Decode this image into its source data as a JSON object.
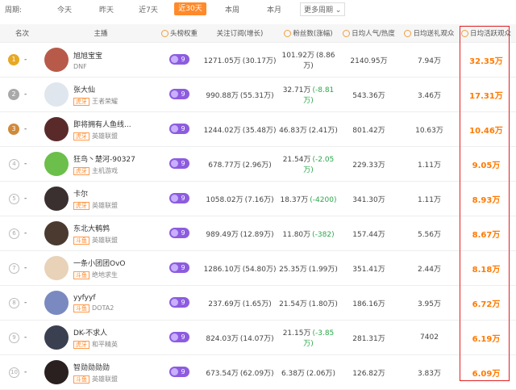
{
  "filter": {
    "label": "周期:",
    "tabs": [
      "今天",
      "昨天",
      "近7天",
      "近30天",
      "本周",
      "本月"
    ],
    "active": 3,
    "more": "更多周期"
  },
  "headers": [
    "名次",
    "主播",
    "头榜权重",
    "关注订阅(增长)",
    "粉丝数(涨幅)",
    "日均人气/热度",
    "日均送礼观众",
    "日均活跃观众"
  ],
  "rows": [
    {
      "rank": 1,
      "change": "-",
      "name": "旭旭宝宝",
      "game": "DNF",
      "weight": 9,
      "follow": "1271.05万",
      "follow_growth": "(30.17万)",
      "fans": "101.92万",
      "fans_change": "(8.86万)",
      "popularity": "2140.95万",
      "gifters": "7.94万",
      "active": "32.35万"
    },
    {
      "rank": 2,
      "change": "-",
      "name": "张大仙",
      "tag": "虎牙",
      "game": "王者荣耀",
      "weight": 9,
      "follow": "990.88万",
      "follow_growth": "(55.31万)",
      "fans": "32.71万",
      "fans_change": "(-8.81万)",
      "popularity": "543.36万",
      "gifters": "3.46万",
      "active": "17.31万"
    },
    {
      "rank": 3,
      "change": "-",
      "name": "即将拥有人鱼线...",
      "tag": "虎牙",
      "game": "英雄联盟",
      "weight": 9,
      "follow": "1244.02万",
      "follow_growth": "(35.48万)",
      "fans": "46.83万",
      "fans_change": "(2.41万)",
      "popularity": "801.42万",
      "gifters": "10.63万",
      "active": "10.46万"
    },
    {
      "rank": 4,
      "change": "-",
      "name": "狂鸟丶楚河-90327",
      "tag": "虎牙",
      "game": "主机游戏",
      "weight": 9,
      "follow": "678.77万",
      "follow_growth": "(2.96万)",
      "fans": "21.54万",
      "fans_change": "(-2.05万)",
      "popularity": "229.33万",
      "gifters": "1.11万",
      "active": "9.05万"
    },
    {
      "rank": 5,
      "change": "-",
      "name": "卡尔",
      "tag": "虎牙",
      "game": "英雄联盟",
      "weight": 9,
      "follow": "1058.02万",
      "follow_growth": "(7.16万)",
      "fans": "18.37万",
      "fans_change": "(-4200)",
      "popularity": "341.30万",
      "gifters": "1.11万",
      "active": "8.93万"
    },
    {
      "rank": 6,
      "change": "-",
      "name": "东北大鹌鹑",
      "tag": "斗鱼",
      "game": "英雄联盟",
      "weight": 9,
      "follow": "989.49万",
      "follow_growth": "(12.89万)",
      "fans": "11.80万",
      "fans_change": "(-382)",
      "popularity": "157.44万",
      "gifters": "5.56万",
      "active": "8.67万"
    },
    {
      "rank": 7,
      "change": "-",
      "name": "一条小团团OvO",
      "tag": "斗鱼",
      "game": "绝地求生",
      "weight": 9,
      "follow": "1286.10万",
      "follow_growth": "(54.80万)",
      "fans": "25.35万",
      "fans_change": "(1.99万)",
      "popularity": "351.41万",
      "gifters": "2.44万",
      "active": "8.18万"
    },
    {
      "rank": 8,
      "change": "-",
      "name": "yyfyyf",
      "tag": "斗鱼",
      "game": "DOTA2",
      "weight": 9,
      "follow": "237.69万",
      "follow_growth": "(1.65万)",
      "fans": "21.54万",
      "fans_change": "(1.80万)",
      "popularity": "186.16万",
      "gifters": "3.95万",
      "active": "6.72万"
    },
    {
      "rank": 9,
      "change": "-",
      "name": "DK-不求人",
      "tag": "虎牙",
      "game": "和平精英",
      "weight": 9,
      "follow": "824.03万",
      "follow_growth": "(14.07万)",
      "fans": "21.15万",
      "fans_change": "(-3.85万)",
      "popularity": "281.31万",
      "gifters": "7402",
      "active": "6.19万"
    },
    {
      "rank": 10,
      "change": "-",
      "name": "智勋勋勋勋",
      "tag": "斗鱼",
      "game": "英雄联盟",
      "weight": 9,
      "follow": "673.54万",
      "follow_growth": "(62.09万)",
      "fans": "6.38万",
      "fans_change": "(2.06万)",
      "popularity": "126.82万",
      "gifters": "3.83万",
      "active": "6.09万"
    }
  ]
}
